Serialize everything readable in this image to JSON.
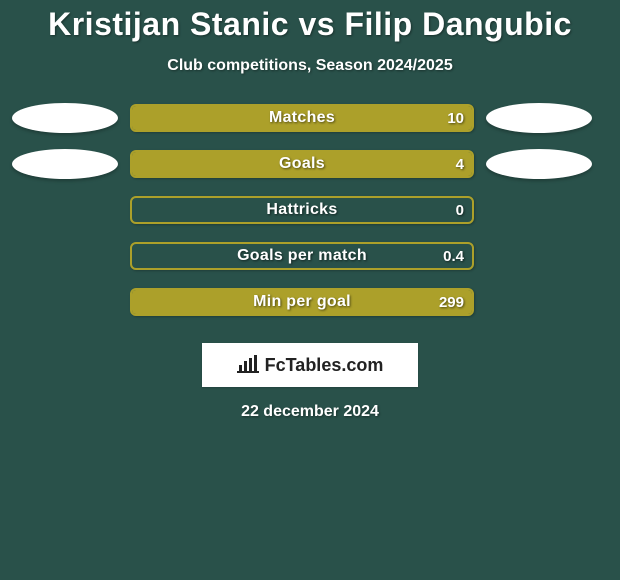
{
  "background_color": "#29514a",
  "title": "Kristijan Stanic vs Filip Dangubic",
  "title_fontsize": 32,
  "subtitle": "Club competitions, Season 2024/2025",
  "subtitle_fontsize": 16,
  "accent_color": "#aca02a",
  "bar_border_color": "#aca02a",
  "bar_fill_color": "#aca02a",
  "ellipse_color": "#ffffff",
  "text_color": "#ffffff",
  "stats": [
    {
      "label": "Matches",
      "value_text": "10",
      "fill_pct": 100,
      "fill_side": "left",
      "show_left_ellipse": true,
      "show_right_ellipse": true
    },
    {
      "label": "Goals",
      "value_text": "4",
      "fill_pct": 100,
      "fill_side": "left",
      "show_left_ellipse": true,
      "show_right_ellipse": true
    },
    {
      "label": "Hattricks",
      "value_text": "0",
      "fill_pct": 0,
      "fill_side": "left",
      "show_left_ellipse": false,
      "show_right_ellipse": false
    },
    {
      "label": "Goals per match",
      "value_text": "0.4",
      "fill_pct": 0,
      "fill_side": "left",
      "show_left_ellipse": false,
      "show_right_ellipse": false
    },
    {
      "label": "Min per goal",
      "value_text": "299",
      "fill_pct": 100,
      "fill_side": "left",
      "show_left_ellipse": false,
      "show_right_ellipse": false
    }
  ],
  "brand": {
    "text": "FcTables.com",
    "text_color": "#222222",
    "box_bg": "#ffffff"
  },
  "date": "22 december 2024"
}
